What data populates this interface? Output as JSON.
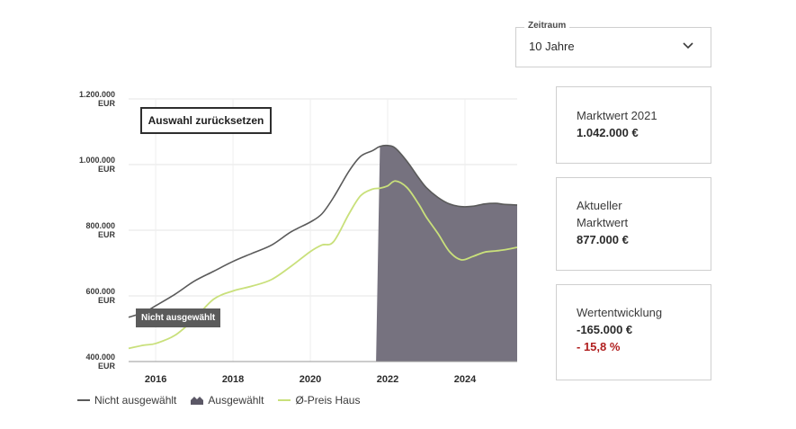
{
  "period_select": {
    "label": "Zeitraum",
    "value": "10 Jahre"
  },
  "reset_button": "Auswahl zurücksetzen",
  "tooltip": "Nicht ausgewählt",
  "cards": [
    {
      "label": "Marktwert 2021",
      "value": "1.042.000 €"
    },
    {
      "label": "Aktueller Marktwert",
      "value": "877.000 €"
    },
    {
      "label": "Wertentwicklung",
      "value": "-165.000 €",
      "change": "- 15,8 %",
      "change_color": "#b01e1e"
    }
  ],
  "legend": [
    {
      "label": "Nicht ausgewählt",
      "kind": "line",
      "color": "#5a5a5a"
    },
    {
      "label": "Ausgewählt",
      "kind": "area",
      "color": "#76727f"
    },
    {
      "label": "Ø-Preis Haus",
      "kind": "line",
      "color": "#c9e07b"
    }
  ],
  "chart_data": {
    "type": "line",
    "title": "",
    "xlabel": "",
    "ylabel": "EUR",
    "ylim": [
      400000,
      1200000
    ],
    "xlim": [
      2015.3,
      2025.35
    ],
    "x_ticks": [
      2016,
      2018,
      2020,
      2022,
      2024
    ],
    "x_tick_labels": [
      "2016",
      "2018",
      "2020",
      "2022",
      "2024"
    ],
    "y_ticks": [
      400000,
      600000,
      800000,
      1000000,
      1200000
    ],
    "y_tick_labels": [
      "400.000",
      "600.000",
      "800.000",
      "1.000.000",
      "1.200.000"
    ],
    "y_unit_label": "EUR",
    "selected_range": [
      2021.7,
      2025.35
    ],
    "series": [
      {
        "name": "Nicht ausgewählt",
        "color": "#5a5a5a",
        "x": [
          2015.3,
          2015.7,
          2016.0,
          2016.5,
          2017.0,
          2017.5,
          2018.0,
          2018.5,
          2019.0,
          2019.5,
          2020.0,
          2020.3,
          2020.6,
          2021.0,
          2021.3,
          2021.6,
          2021.8,
          2022.0,
          2022.2,
          2022.5,
          2022.8,
          2023.0,
          2023.3,
          2023.6,
          2023.9,
          2024.2,
          2024.5,
          2024.8,
          2025.0,
          2025.35
        ],
        "values": [
          535000,
          550000,
          570000,
          605000,
          645000,
          675000,
          705000,
          730000,
          755000,
          795000,
          825000,
          850000,
          900000,
          980000,
          1025000,
          1042000,
          1055000,
          1058000,
          1050000,
          1010000,
          960000,
          930000,
          900000,
          880000,
          872000,
          873000,
          880000,
          882000,
          879000,
          877000
        ]
      },
      {
        "name": "Ø-Preis Haus",
        "color": "#c9e07b",
        "x": [
          2015.3,
          2015.7,
          2016.0,
          2016.5,
          2017.0,
          2017.5,
          2018.0,
          2018.5,
          2019.0,
          2019.5,
          2020.0,
          2020.3,
          2020.6,
          2021.0,
          2021.3,
          2021.6,
          2021.8,
          2022.0,
          2022.2,
          2022.5,
          2022.8,
          2023.0,
          2023.3,
          2023.6,
          2023.9,
          2024.2,
          2024.5,
          2024.8,
          2025.0,
          2025.35
        ],
        "values": [
          440000,
          450000,
          455000,
          480000,
          530000,
          590000,
          615000,
          630000,
          650000,
          690000,
          735000,
          755000,
          765000,
          850000,
          905000,
          925000,
          928000,
          935000,
          950000,
          930000,
          880000,
          840000,
          790000,
          735000,
          710000,
          720000,
          733000,
          737000,
          740000,
          748000
        ]
      }
    ]
  }
}
